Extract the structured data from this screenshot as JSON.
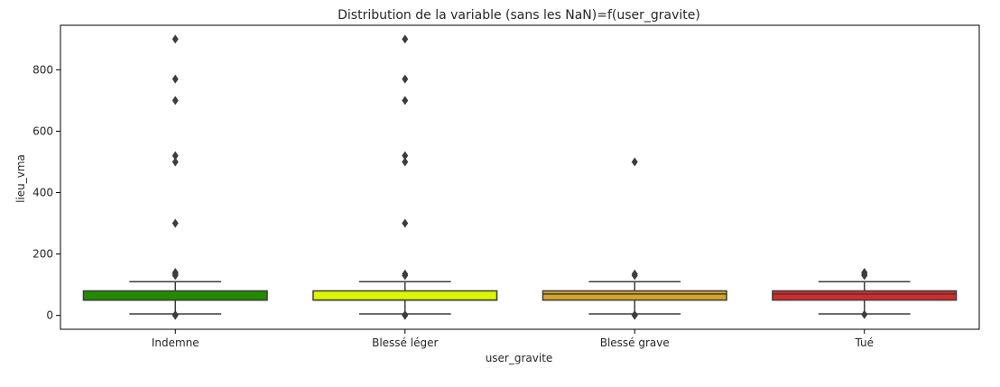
{
  "chart_data": {
    "type": "box",
    "title": "Distribution de la variable (sans les NaN)=f(user_gravite)",
    "xlabel": "user_gravite",
    "ylabel": "lieu_vma",
    "ylim": [
      -45,
      945
    ],
    "yticks": [
      0,
      200,
      400,
      600,
      800
    ],
    "grid": false,
    "categories": [
      "Indemne",
      "Blessé léger",
      "Blessé grave",
      "Tué"
    ],
    "boxes": [
      {
        "category": "Indemne",
        "color": "#228B00",
        "q1": 50,
        "median": 50,
        "q3": 80,
        "whisker_low": 5,
        "whisker_high": 110,
        "outliers": [
          0,
          2,
          130,
          135,
          140,
          300,
          500,
          520,
          700,
          770,
          900
        ]
      },
      {
        "category": "Blessé léger",
        "color": "#DDF500",
        "q1": 50,
        "median": 50,
        "q3": 80,
        "whisker_low": 5,
        "whisker_high": 110,
        "outliers": [
          0,
          2,
          130,
          135,
          300,
          500,
          520,
          700,
          770,
          900
        ]
      },
      {
        "category": "Blessé grave",
        "color": "#D4A526",
        "q1": 50,
        "median": 70,
        "q3": 80,
        "whisker_low": 5,
        "whisker_high": 110,
        "outliers": [
          0,
          2,
          130,
          135,
          500
        ]
      },
      {
        "category": "Tué",
        "color": "#D62A2A",
        "q1": 50,
        "median": 70,
        "q3": 80,
        "whisker_low": 5,
        "whisker_high": 110,
        "outliers": [
          3,
          130,
          135,
          140
        ]
      }
    ]
  }
}
